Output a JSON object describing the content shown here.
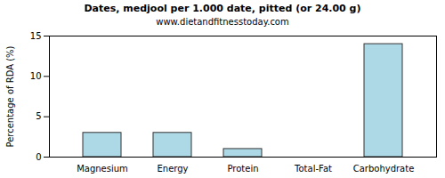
{
  "chart_data": {
    "type": "bar",
    "title": "Dates, medjool per 1.000 date, pitted (or 24.00 g)",
    "subtitle": "www.dietandfitnesstoday.com",
    "y_label": "Percentage of RDA (%)",
    "categories": [
      "Magnesium",
      "Energy",
      "Protein",
      "Total-Fat",
      "Carbohydrate"
    ],
    "values": [
      3,
      3,
      1,
      0,
      14
    ],
    "color": "#add8e6",
    "ylim": [
      0,
      15
    ],
    "yticks": [
      0,
      5,
      10,
      15
    ],
    "grid": false
  }
}
